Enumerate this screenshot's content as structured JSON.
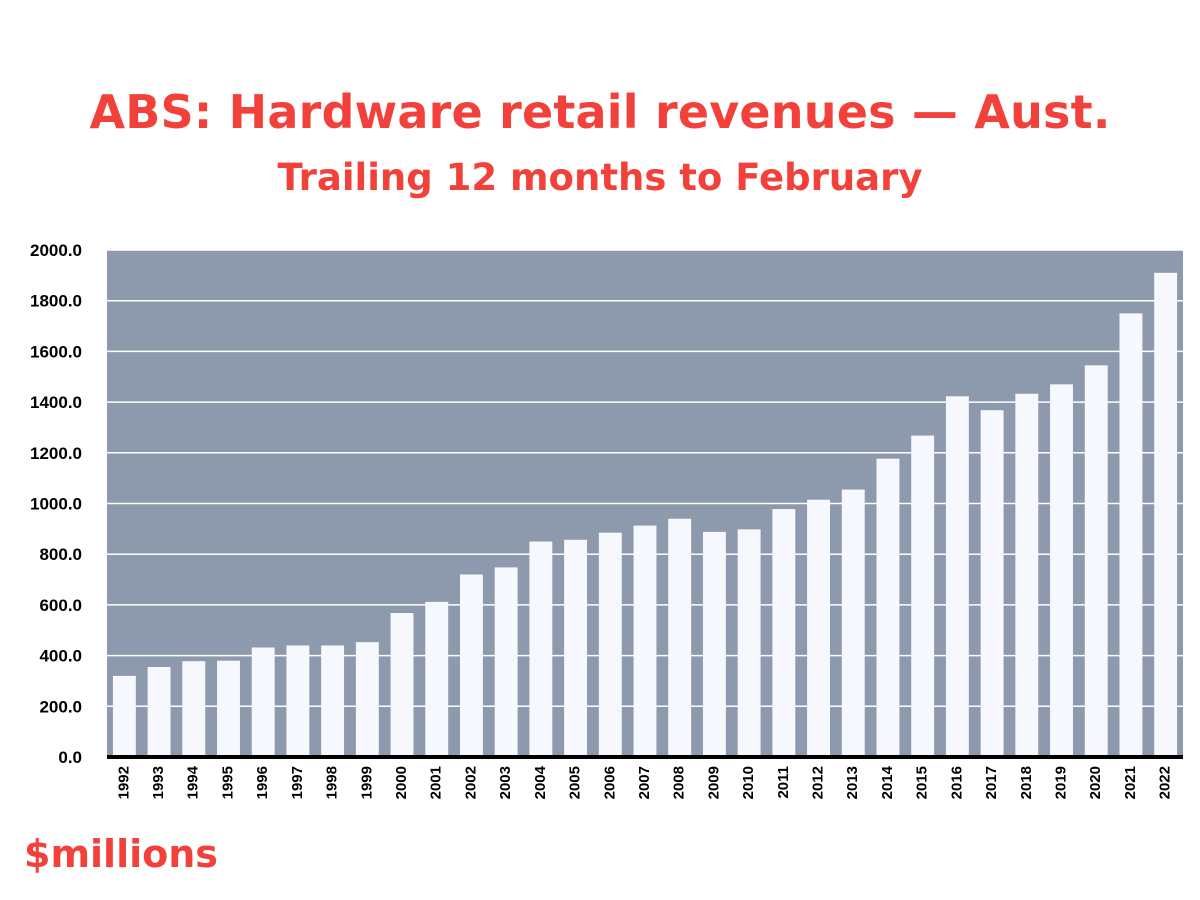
{
  "title": "ABS: Hardware retail revenues — Aust.",
  "subtitle": "Trailing 12 months to February",
  "unit_label": "$millions",
  "colors": {
    "title": "#f2403b",
    "plot_background": "#8d99ac",
    "bar": "#f7f8fd",
    "gridline": "#ffffff",
    "baseline": "#000000"
  },
  "chart_data": {
    "type": "bar",
    "title": "ABS: Hardware retail revenues — Aust.",
    "subtitle": "Trailing 12 months to February",
    "xlabel": "",
    "ylabel": "$millions",
    "ylim": [
      0,
      2000
    ],
    "yticks": [
      "0.0",
      "200.0",
      "400.0",
      "600.0",
      "800.0",
      "1000.0",
      "1200.0",
      "1400.0",
      "1600.0",
      "1800.0",
      "2000.0"
    ],
    "grid": true,
    "categories": [
      "1992",
      "1993",
      "1994",
      "1995",
      "1996",
      "1997",
      "1998",
      "1999",
      "2000",
      "2001",
      "2002",
      "2003",
      "2004",
      "2005",
      "2006",
      "2007",
      "2008",
      "2009",
      "2010",
      "2011",
      "2012",
      "2013",
      "2014",
      "2015",
      "2016",
      "2017",
      "2018",
      "2019",
      "2020",
      "2021",
      "2022"
    ],
    "values": [
      320,
      355,
      378,
      380,
      432,
      440,
      440,
      453,
      568,
      612,
      720,
      748,
      850,
      857,
      885,
      913,
      940,
      888,
      898,
      978,
      1015,
      1055,
      1177,
      1268,
      1423,
      1368,
      1433,
      1470,
      1545,
      1750,
      1910
    ]
  }
}
